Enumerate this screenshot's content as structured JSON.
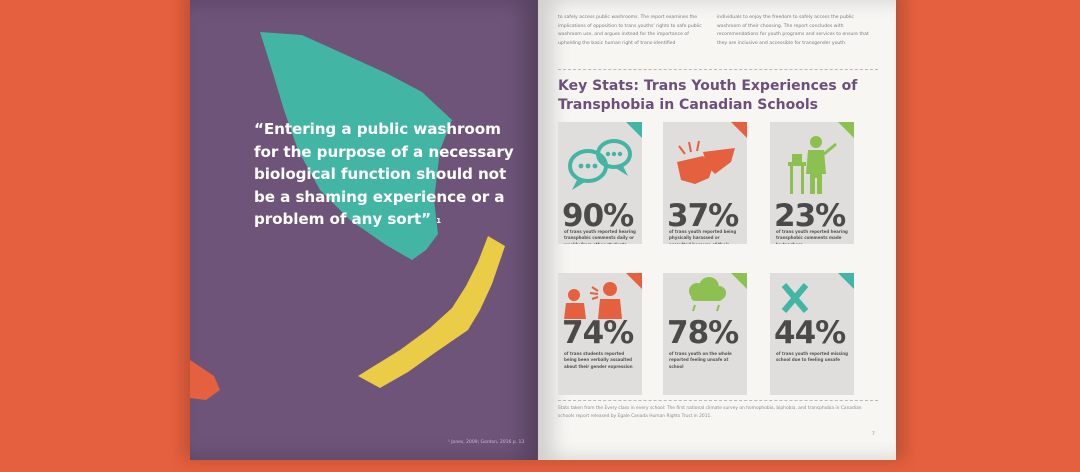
{
  "left_page": {
    "quote": "“Entering a public washroom for the purpose of a necessary biological function should not be a shaming experience or a problem of any sort”",
    "quote_ref": "1",
    "footnote": "¹ Jones, 2009; Gordon, 2016 p. 13",
    "colors": {
      "page": "#6e5479",
      "teal": "#43b5a4",
      "yellow": "#eacc46",
      "orange": "#e5603e"
    }
  },
  "right_page": {
    "intro_col1": "to safely access public washrooms. The report examines the implications of opposition to trans youths' rights to safe public washroom use, and argues instead for the importance of upholding the basic human right of trans-identified",
    "intro_col2": "individuals to enjoy the freedom to safely access the public washroom of their choosing. The report concludes with recommendations for youth programs and services to ensure that they are inclusive and accessible for transgender youth.",
    "heading": "Key Stats: Trans Youth Experiences of Transphobia in Canadian Schools",
    "stats": [
      {
        "value": "90%",
        "caption": "of trans youth reported hearing transphobic comments daily or weekly from other students",
        "icon": "speech-bubbles-icon",
        "color": "#43b5a4"
      },
      {
        "value": "37%",
        "caption": "of trans youth reported being physically harassed or assaulted because of their gender expression",
        "icon": "hands-icon",
        "color": "#e5603e"
      },
      {
        "value": "23%",
        "caption": "of trans youth reported hearing transphobic comments made by teachers",
        "icon": "teacher-icon",
        "color": "#8cc152"
      },
      {
        "value": "74%",
        "caption": "of trans students reported being been verbally assaulted about their gender expression",
        "icon": "shouting-icon",
        "color": "#e5603e"
      },
      {
        "value": "78%",
        "caption": "of trans youth on the whole reported feeling unsafe at school",
        "icon": "storm-cloud-icon",
        "color": "#8cc152"
      },
      {
        "value": "44%",
        "caption": "of trans youth reported missing school due to feeling unsafe",
        "icon": "x-icon",
        "color": "#43b5a4"
      }
    ],
    "footnote": "Stats taken from the Every class in every school: The first national climate survey on homophobia, biphobia, and transphobia in Canadian schools report released by Egale Canada Human Rights Trust in 2011.",
    "page_number": "7"
  }
}
